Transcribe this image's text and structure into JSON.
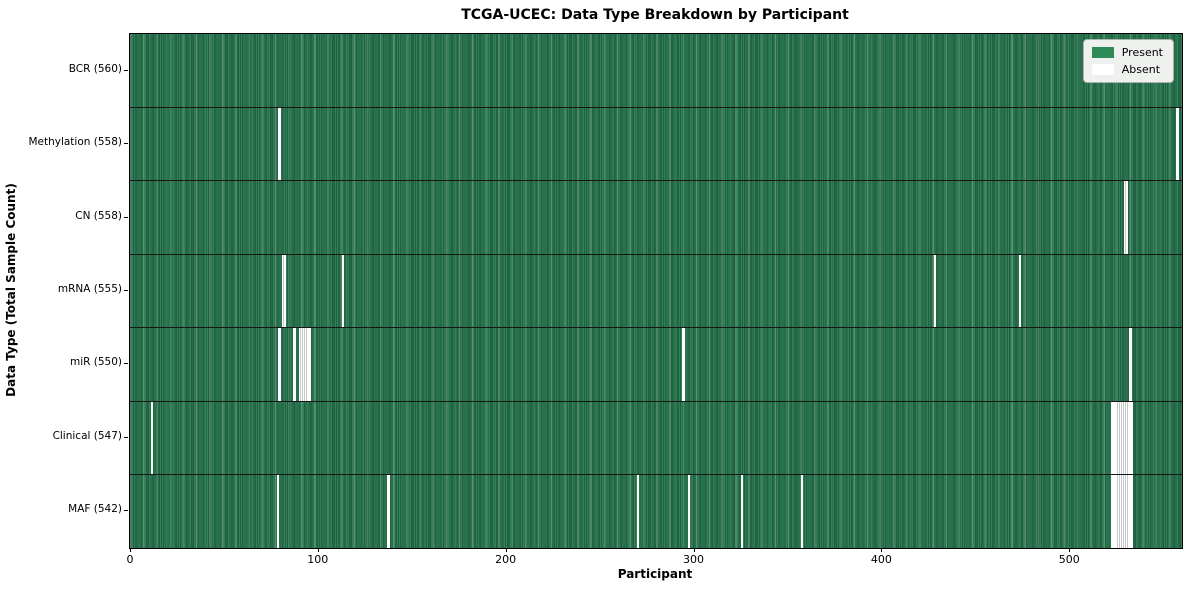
{
  "title": "TCGA-UCEC: Data Type Breakdown by Participant",
  "axes": {
    "xlabel": "Participant",
    "ylabel": "Data Type (Total Sample Count)"
  },
  "legend": {
    "items": [
      {
        "label": "Present",
        "color": "#2e8b57"
      },
      {
        "label": "Absent",
        "color": "#ffffff"
      }
    ]
  },
  "chart_data": {
    "type": "heatmap",
    "title": "TCGA-UCEC: Data Type Breakdown by Participant",
    "xlabel": "Participant",
    "ylabel": "Data Type (Total Sample Count)",
    "legend_position": "upper right",
    "present_color": "#2e8b57",
    "absent_color": "#ffffff",
    "n_participants": 560,
    "xlim": [
      -0.5,
      559.5
    ],
    "x_ticks": [
      0,
      100,
      200,
      300,
      400,
      500
    ],
    "rows": [
      {
        "name": "BCR",
        "label": "BCR (560)",
        "present_count": 560,
        "absent_participants": []
      },
      {
        "name": "Methylation",
        "label": "Methylation (558)",
        "present_count": 558,
        "absent_participants": [
          79,
          557
        ]
      },
      {
        "name": "CN",
        "label": "CN (558)",
        "present_count": 558,
        "absent_participants": [
          529,
          530
        ]
      },
      {
        "name": "mRNA",
        "label": "mRNA (555)",
        "present_count": 555,
        "absent_participants": [
          81,
          82,
          113,
          428,
          473
        ]
      },
      {
        "name": "miR",
        "label": "miR (550)",
        "present_count": 550,
        "absent_participants": [
          79,
          87,
          90,
          91,
          92,
          93,
          94,
          95,
          294,
          532
        ]
      },
      {
        "name": "Clinical",
        "label": "Clinical (547)",
        "present_count": 547,
        "absent_participants": [
          11,
          522,
          523,
          524,
          525,
          526,
          527,
          528,
          529,
          530,
          531,
          532,
          533
        ]
      },
      {
        "name": "MAF",
        "label": "MAF (542)",
        "present_count": 542,
        "absent_participants": [
          78,
          137,
          270,
          297,
          325,
          357,
          522,
          523,
          524,
          525,
          526,
          527,
          528,
          529,
          530,
          531,
          532,
          533
        ]
      }
    ]
  }
}
